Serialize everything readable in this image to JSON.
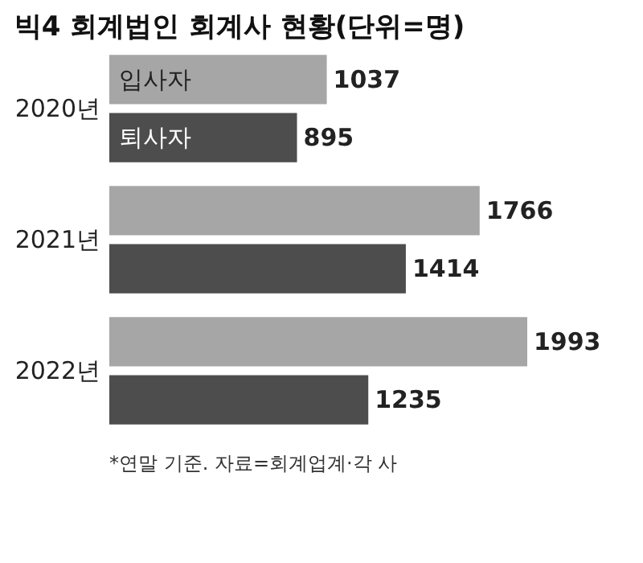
{
  "chart_data": {
    "type": "bar",
    "orientation": "horizontal",
    "title": "빅4 회계법인 회계사 현황(단위=명)",
    "categories": [
      "2020년",
      "2021년",
      "2022년"
    ],
    "series": [
      {
        "name": "입사자",
        "color": "#a6a6a6",
        "values": [
          1037,
          1766,
          1993
        ]
      },
      {
        "name": "퇴사자",
        "color": "#4d4d4d",
        "values": [
          895,
          1414,
          1235
        ]
      }
    ],
    "data_labels": true,
    "legend": false,
    "grid": false,
    "annotations": [
      "*연말 기준. 자료=회계업계·각 사"
    ]
  }
}
